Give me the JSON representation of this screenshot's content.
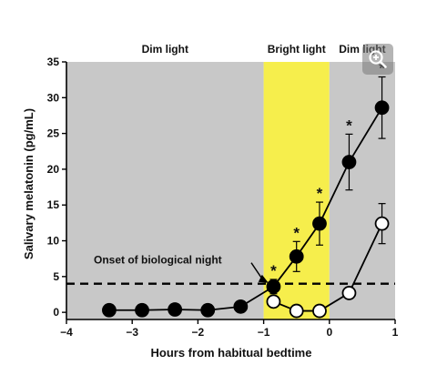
{
  "chart_data": {
    "type": "line",
    "xlabel": "Hours from habitual bedtime",
    "ylabel": "Salivary melatonin (pg/mL)",
    "xlim": [
      -4,
      1
    ],
    "ylim": [
      -1,
      35
    ],
    "xticks": [
      "−4",
      "−3",
      "−2",
      "−1",
      "0",
      "1"
    ],
    "xtick_values": [
      -4,
      -3,
      -2,
      -1,
      0,
      1
    ],
    "yticks": [
      0,
      5,
      10,
      15,
      20,
      25,
      30,
      35
    ],
    "grid": false,
    "regions": [
      {
        "label": "Dim light",
        "x_start": -4,
        "x_end": -1,
        "color": "#c8c8c8"
      },
      {
        "label": "Bright light",
        "x_start": -1,
        "x_end": 0,
        "color": "#f6ee4c"
      },
      {
        "label": "Dim light",
        "x_start": 0,
        "x_end": 1,
        "color": "#c8c8c8"
      }
    ],
    "reference_line": {
      "y": 4,
      "label": "Onset of biological night",
      "style": "dashed"
    },
    "series": [
      {
        "marker": "filled-circle",
        "color": "#000000",
        "points": [
          {
            "x": -3.35,
            "y": 0.3,
            "err": 0
          },
          {
            "x": -2.85,
            "y": 0.3,
            "err": 0
          },
          {
            "x": -2.35,
            "y": 0.4,
            "err": 0
          },
          {
            "x": -1.85,
            "y": 0.3,
            "err": 0
          },
          {
            "x": -1.35,
            "y": 0.8,
            "err": 0.3
          },
          {
            "x": -0.85,
            "y": 3.6,
            "err": 1.0,
            "significant": true
          },
          {
            "x": -0.5,
            "y": 7.8,
            "err": 2.1,
            "significant": true
          },
          {
            "x": -0.15,
            "y": 12.4,
            "err": 3.0,
            "significant": true
          },
          {
            "x": 0.3,
            "y": 21.0,
            "err": 3.9,
            "significant": true
          },
          {
            "x": 0.8,
            "y": 28.6,
            "err": 4.3,
            "significant": true
          }
        ]
      },
      {
        "marker": "open-circle",
        "color": "#000000",
        "points": [
          {
            "x": -0.85,
            "y": 1.5,
            "err": 0.5
          },
          {
            "x": -0.5,
            "y": 0.2,
            "err": 0
          },
          {
            "x": -0.15,
            "y": 0.2,
            "err": 0
          },
          {
            "x": 0.3,
            "y": 2.7,
            "err": 0.4
          },
          {
            "x": 0.8,
            "y": 12.4,
            "err": 2.8
          }
        ]
      }
    ],
    "significance_marker": "*"
  },
  "ui": {
    "zoom_icon": "zoom-in-icon"
  }
}
